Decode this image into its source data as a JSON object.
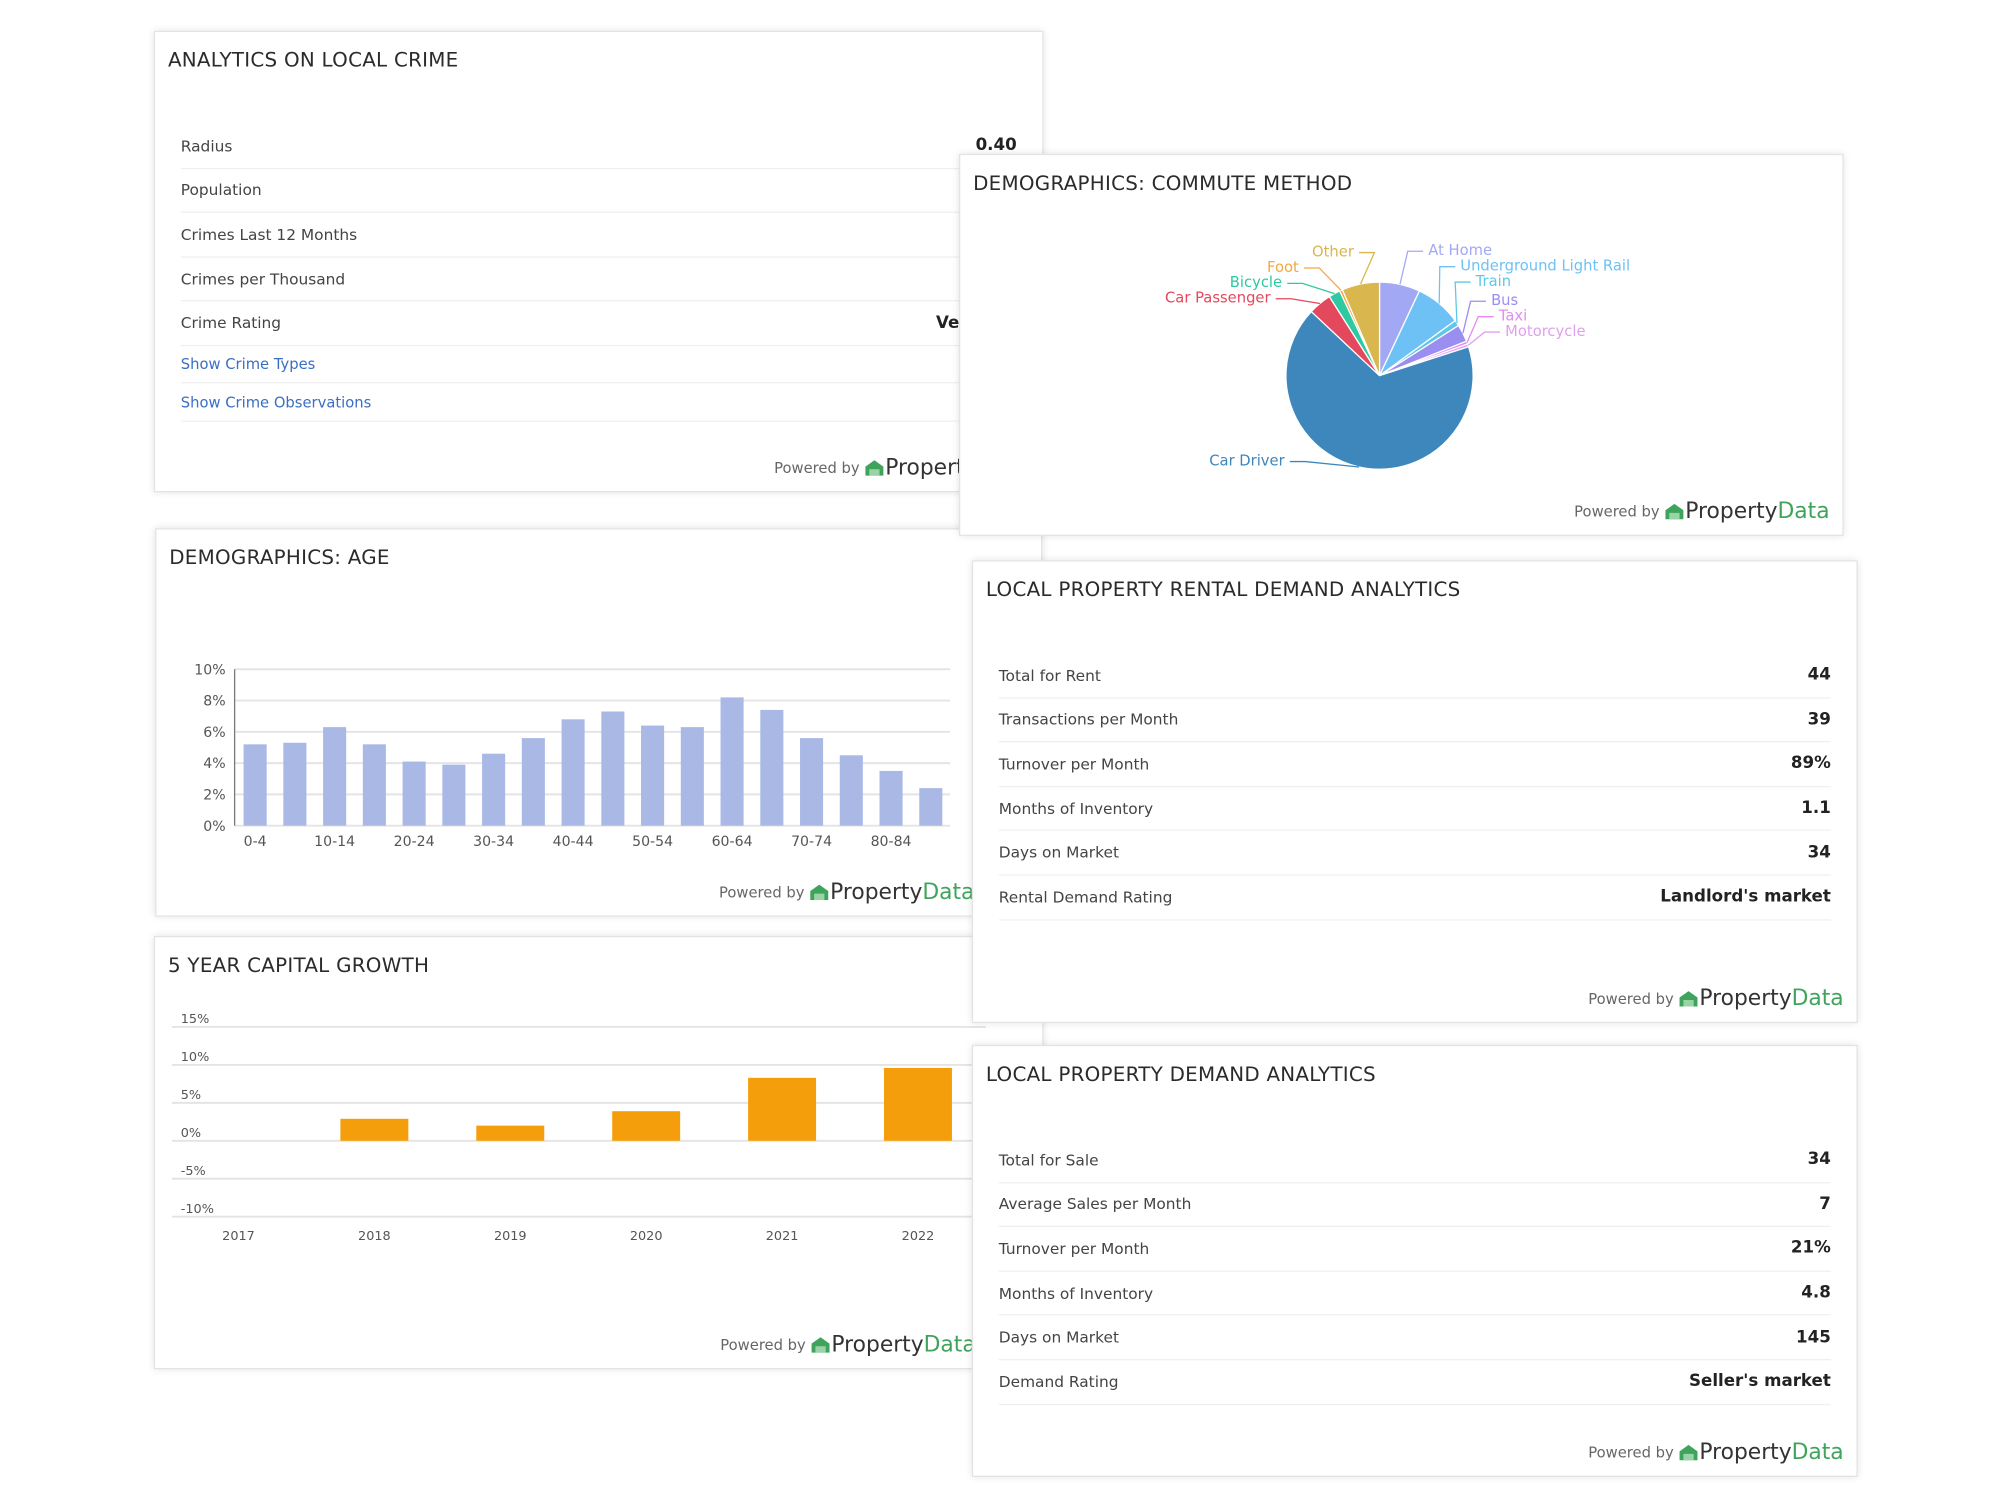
{
  "crime": {
    "title": "ANALYTICS ON LOCAL CRIME",
    "rows": [
      {
        "label": "Radius",
        "value": "0.40"
      },
      {
        "label": "Population"
      },
      {
        "label": "Crimes Last 12 Months"
      },
      {
        "label": "Crimes per Thousand"
      },
      {
        "label": "Crime Rating",
        "value": "Very low"
      }
    ],
    "links": [
      "Show Crime Types",
      "Show Crime Observations"
    ]
  },
  "rental": {
    "title": "LOCAL PROPERTY RENTAL DEMAND ANALYTICS",
    "rows": [
      {
        "label": "Total for Rent",
        "value": "44"
      },
      {
        "label": "Transactions per Month",
        "value": "39"
      },
      {
        "label": "Turnover per Month",
        "value": "89%"
      },
      {
        "label": "Months of Inventory",
        "value": "1.1"
      },
      {
        "label": "Days on Market",
        "value": "34"
      },
      {
        "label": "Rental Demand Rating",
        "value": "Landlord's market"
      }
    ]
  },
  "demand": {
    "title": "LOCAL PROPERTY DEMAND ANALYTICS",
    "rows": [
      {
        "label": "Total for Sale",
        "value": "34"
      },
      {
        "label": "Average Sales per Month",
        "value": "7"
      },
      {
        "label": "Turnover per Month",
        "value": "21%"
      },
      {
        "label": "Months of Inventory",
        "value": "4.8"
      },
      {
        "label": "Days on Market",
        "value": "145"
      },
      {
        "label": "Demand Rating",
        "value": "Seller's market"
      }
    ]
  },
  "footer": {
    "powered": "Powered by",
    "brand1": "Property",
    "brand2": "Data"
  },
  "chart_data": [
    {
      "type": "bar",
      "title": "DEMOGRAPHICS: AGE",
      "categories": [
        "0-4",
        null,
        "10-14",
        null,
        "20-24",
        null,
        "30-34",
        null,
        "40-44",
        null,
        "50-54",
        null,
        "60-64",
        null,
        "70-74",
        null,
        "80-84",
        null
      ],
      "values": [
        5.2,
        5.3,
        6.3,
        5.2,
        4.1,
        3.9,
        4.6,
        5.6,
        6.8,
        7.3,
        6.4,
        6.3,
        8.2,
        7.4,
        5.6,
        4.5,
        3.5,
        2.4
      ],
      "color": "#aab8e6",
      "ylim": [
        0,
        10
      ],
      "yticks": [
        {
          "value": 0,
          "label": "0%"
        },
        {
          "value": 2,
          "label": "2%"
        },
        {
          "value": 4,
          "label": "4%"
        },
        {
          "value": 6,
          "label": "6%"
        },
        {
          "value": 8,
          "label": "8%"
        },
        {
          "value": 10,
          "label": "10%"
        }
      ],
      "grid": true
    },
    {
      "type": "bar",
      "title": "5 YEAR CAPITAL GROWTH",
      "categories": [
        "2017",
        "2018",
        "2019",
        "2020",
        "2021",
        "2022"
      ],
      "values": [
        null,
        2.9,
        2.0,
        3.9,
        8.3,
        9.6
      ],
      "color": "#f59e0b",
      "ylim": [
        -10,
        15
      ],
      "yticks": [
        {
          "value": -10,
          "label": "-10%"
        },
        {
          "value": -5,
          "label": "-5%"
        },
        {
          "value": 0,
          "label": "0%"
        },
        {
          "value": 5,
          "label": "5%"
        },
        {
          "value": 10,
          "label": "10%"
        },
        {
          "value": 15,
          "label": "15%"
        }
      ],
      "grid": true
    },
    {
      "type": "pie",
      "title": "DEMOGRAPHICS: COMMUTE METHOD",
      "categories": [
        "At Home",
        "Underground Light Rail",
        "Train",
        "Bus",
        "Taxi",
        "Motorcycle",
        "Car Driver",
        "Car Passenger",
        "Bicycle",
        "Foot",
        "Other"
      ],
      "values": [
        7,
        8,
        1,
        3,
        0.5,
        0.5,
        67,
        4,
        2,
        0.5,
        6.5
      ],
      "colors": [
        "#a3a8f5",
        "#6ec1f5",
        "#5fc8e8",
        "#9a8ef0",
        "#e48af0",
        "#e0a0f0",
        "#3e87bd",
        "#e4485d",
        "#2ec9a0",
        "#f5a742",
        "#d9b64e"
      ]
    }
  ]
}
